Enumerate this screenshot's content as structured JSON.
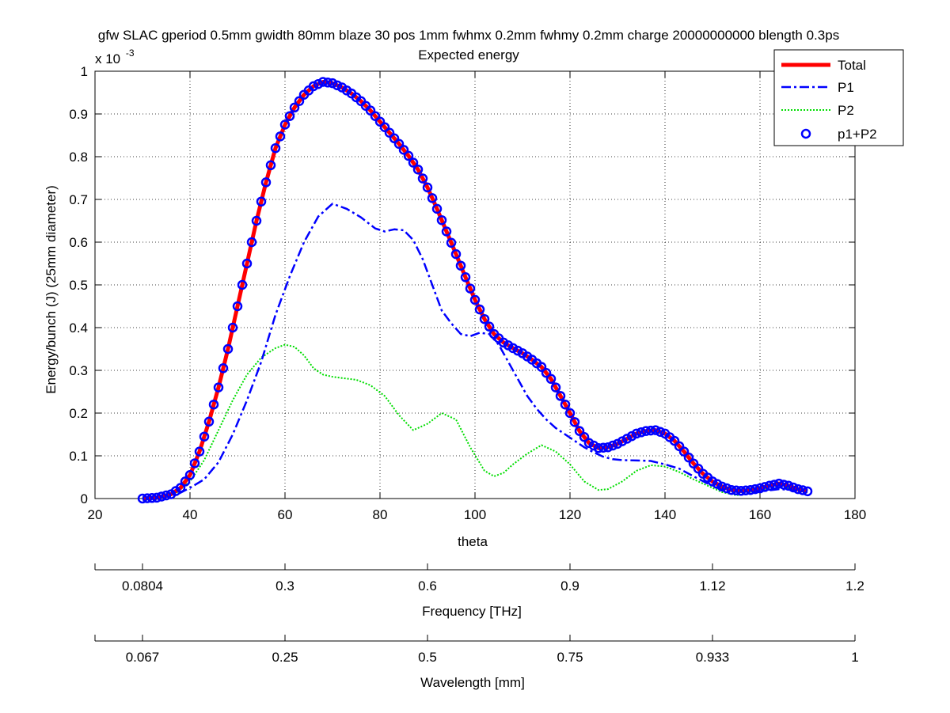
{
  "chart_data": {
    "type": "line",
    "title": "gfw SLAC gperiod 0.5mm gwidth 80mm blaze 30 pos 1mm fwhmx 0.2mm fwhmy 0.2mm charge 20000000000 blength 0.3ps",
    "subtitle": "Expected energy",
    "xlabel": "theta",
    "ylabel": "Energy/bunch (J) (25mm diameter)",
    "y_exponent": "x 10",
    "y_exponent_power": "-3",
    "xlim": [
      20,
      180
    ],
    "ylim": [
      0,
      1
    ],
    "xticks": [
      20,
      40,
      60,
      80,
      100,
      120,
      140,
      160,
      180
    ],
    "yticks": [
      0,
      0.1,
      0.2,
      0.3,
      0.4,
      0.5,
      0.6,
      0.7,
      0.8,
      0.9,
      1
    ],
    "grid": true,
    "legend_position": "top-right",
    "series": [
      {
        "name": "Total",
        "style": "solid",
        "color": "#ff0000",
        "points": [
          [
            30,
            0
          ],
          [
            33,
            0.002
          ],
          [
            36,
            0.01
          ],
          [
            38,
            0.025
          ],
          [
            40,
            0.055
          ],
          [
            42,
            0.11
          ],
          [
            44,
            0.18
          ],
          [
            46,
            0.26
          ],
          [
            48,
            0.35
          ],
          [
            50,
            0.45
          ],
          [
            52,
            0.55
          ],
          [
            54,
            0.65
          ],
          [
            56,
            0.74
          ],
          [
            58,
            0.82
          ],
          [
            60,
            0.875
          ],
          [
            62,
            0.915
          ],
          [
            64,
            0.945
          ],
          [
            66,
            0.965
          ],
          [
            68,
            0.975
          ],
          [
            70,
            0.972
          ],
          [
            72,
            0.962
          ],
          [
            74,
            0.948
          ],
          [
            76,
            0.93
          ],
          [
            78,
            0.908
          ],
          [
            80,
            0.882
          ],
          [
            82,
            0.856
          ],
          [
            84,
            0.83
          ],
          [
            86,
            0.802
          ],
          [
            88,
            0.77
          ],
          [
            90,
            0.728
          ],
          [
            92,
            0.678
          ],
          [
            94,
            0.625
          ],
          [
            96,
            0.572
          ],
          [
            98,
            0.518
          ],
          [
            100,
            0.465
          ],
          [
            102,
            0.42
          ],
          [
            104,
            0.385
          ],
          [
            106,
            0.365
          ],
          [
            108,
            0.352
          ],
          [
            110,
            0.34
          ],
          [
            112,
            0.325
          ],
          [
            114,
            0.308
          ],
          [
            116,
            0.28
          ],
          [
            118,
            0.24
          ],
          [
            120,
            0.2
          ],
          [
            122,
            0.158
          ],
          [
            124,
            0.13
          ],
          [
            126,
            0.118
          ],
          [
            128,
            0.12
          ],
          [
            130,
            0.128
          ],
          [
            132,
            0.14
          ],
          [
            134,
            0.152
          ],
          [
            136,
            0.158
          ],
          [
            138,
            0.16
          ],
          [
            140,
            0.152
          ],
          [
            142,
            0.135
          ],
          [
            144,
            0.11
          ],
          [
            146,
            0.082
          ],
          [
            148,
            0.058
          ],
          [
            150,
            0.04
          ],
          [
            152,
            0.028
          ],
          [
            154,
            0.02
          ],
          [
            156,
            0.018
          ],
          [
            158,
            0.02
          ],
          [
            160,
            0.024
          ],
          [
            162,
            0.03
          ],
          [
            164,
            0.035
          ],
          [
            166,
            0.03
          ],
          [
            168,
            0.022
          ],
          [
            170,
            0.017
          ]
        ]
      },
      {
        "name": "P1",
        "style": "dashdot",
        "color": "#0000ff",
        "points": [
          [
            30,
            0
          ],
          [
            34,
            0.002
          ],
          [
            37,
            0.008
          ],
          [
            40,
            0.025
          ],
          [
            43,
            0.045
          ],
          [
            46,
            0.085
          ],
          [
            49,
            0.15
          ],
          [
            52,
            0.23
          ],
          [
            55,
            0.32
          ],
          [
            58,
            0.43
          ],
          [
            61,
            0.52
          ],
          [
            64,
            0.6
          ],
          [
            67,
            0.66
          ],
          [
            70,
            0.69
          ],
          [
            73,
            0.678
          ],
          [
            76,
            0.658
          ],
          [
            79,
            0.632
          ],
          [
            81,
            0.625
          ],
          [
            83,
            0.63
          ],
          [
            85,
            0.628
          ],
          [
            87,
            0.605
          ],
          [
            89,
            0.56
          ],
          [
            91,
            0.5
          ],
          [
            93,
            0.44
          ],
          [
            95,
            0.41
          ],
          [
            97,
            0.385
          ],
          [
            99,
            0.38
          ],
          [
            101,
            0.388
          ],
          [
            103,
            0.385
          ],
          [
            105,
            0.36
          ],
          [
            107,
            0.32
          ],
          [
            109,
            0.28
          ],
          [
            111,
            0.24
          ],
          [
            113,
            0.21
          ],
          [
            115,
            0.185
          ],
          [
            117,
            0.165
          ],
          [
            119,
            0.15
          ],
          [
            121,
            0.135
          ],
          [
            123,
            0.12
          ],
          [
            125,
            0.108
          ],
          [
            127,
            0.098
          ],
          [
            129,
            0.092
          ],
          [
            131,
            0.09
          ],
          [
            134,
            0.089
          ],
          [
            137,
            0.088
          ],
          [
            140,
            0.08
          ],
          [
            143,
            0.07
          ],
          [
            146,
            0.052
          ],
          [
            149,
            0.035
          ],
          [
            152,
            0.022
          ],
          [
            155,
            0.016
          ],
          [
            158,
            0.015
          ],
          [
            161,
            0.018
          ],
          [
            164,
            0.022
          ],
          [
            167,
            0.02
          ],
          [
            170,
            0.015
          ]
        ]
      },
      {
        "name": "P2",
        "style": "dotted",
        "color": "#00dd00",
        "points": [
          [
            30,
            0
          ],
          [
            34,
            0.003
          ],
          [
            37,
            0.012
          ],
          [
            40,
            0.04
          ],
          [
            43,
            0.09
          ],
          [
            46,
            0.16
          ],
          [
            49,
            0.23
          ],
          [
            52,
            0.29
          ],
          [
            55,
            0.33
          ],
          [
            58,
            0.352
          ],
          [
            60,
            0.36
          ],
          [
            62,
            0.355
          ],
          [
            64,
            0.335
          ],
          [
            66,
            0.305
          ],
          [
            68,
            0.29
          ],
          [
            70,
            0.285
          ],
          [
            72,
            0.282
          ],
          [
            75,
            0.278
          ],
          [
            78,
            0.265
          ],
          [
            81,
            0.24
          ],
          [
            84,
            0.195
          ],
          [
            87,
            0.16
          ],
          [
            90,
            0.175
          ],
          [
            93,
            0.2
          ],
          [
            96,
            0.185
          ],
          [
            99,
            0.12
          ],
          [
            102,
            0.065
          ],
          [
            104,
            0.052
          ],
          [
            106,
            0.06
          ],
          [
            108,
            0.08
          ],
          [
            111,
            0.105
          ],
          [
            114,
            0.125
          ],
          [
            117,
            0.11
          ],
          [
            120,
            0.08
          ],
          [
            123,
            0.04
          ],
          [
            126,
            0.02
          ],
          [
            128,
            0.022
          ],
          [
            131,
            0.04
          ],
          [
            134,
            0.065
          ],
          [
            137,
            0.078
          ],
          [
            140,
            0.075
          ],
          [
            143,
            0.062
          ],
          [
            146,
            0.045
          ],
          [
            149,
            0.03
          ],
          [
            152,
            0.015
          ],
          [
            155,
            0.008
          ],
          [
            158,
            0.012
          ],
          [
            161,
            0.02
          ],
          [
            164,
            0.026
          ],
          [
            167,
            0.022
          ],
          [
            170,
            0.018
          ]
        ]
      },
      {
        "name": "p1+P2",
        "style": "markers",
        "color": "#0000ff",
        "marker_step": 1
      }
    ]
  },
  "freq_axis": {
    "label": "Frequency [THz]",
    "ticks": [
      {
        "theta": 30,
        "label": "0.0804"
      },
      {
        "theta": 60,
        "label": "0.3"
      },
      {
        "theta": 90,
        "label": "0.6"
      },
      {
        "theta": 120,
        "label": "0.9"
      },
      {
        "theta": 150,
        "label": "1.12"
      },
      {
        "theta": 180,
        "label": "1.2"
      }
    ]
  },
  "wave_axis": {
    "label": "Wavelength [mm]",
    "ticks": [
      {
        "theta": 30,
        "label": "0.067"
      },
      {
        "theta": 60,
        "label": "0.25"
      },
      {
        "theta": 90,
        "label": "0.5"
      },
      {
        "theta": 120,
        "label": "0.75"
      },
      {
        "theta": 150,
        "label": "0.933"
      },
      {
        "theta": 180,
        "label": "1"
      }
    ]
  }
}
